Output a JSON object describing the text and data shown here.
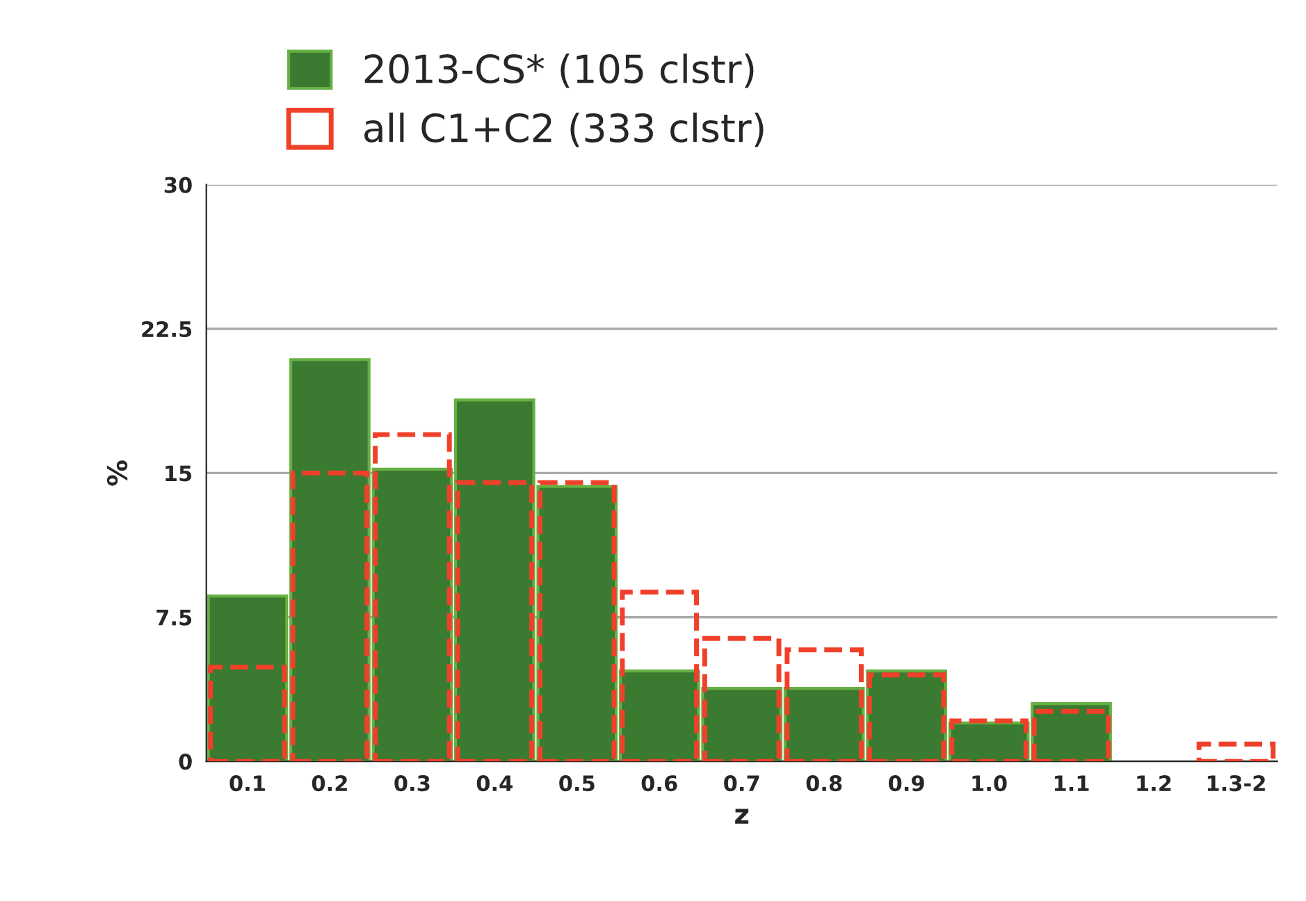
{
  "chart_data": {
    "type": "bar",
    "xlabel": "z",
    "ylabel": "%",
    "categories": [
      "0.1",
      "0.2",
      "0.3",
      "0.4",
      "0.5",
      "0.6",
      "0.7",
      "0.8",
      "0.9",
      "1.0",
      "1.1",
      "1.2",
      "1.3-2"
    ],
    "series": [
      {
        "name": "2013-CS* (105 clstr)",
        "color": "#3b7a31",
        "values": [
          8.6,
          20.9,
          15.2,
          18.8,
          14.3,
          4.7,
          3.8,
          3.8,
          4.7,
          2.0,
          3.0,
          0,
          0
        ]
      },
      {
        "name": "all C1+C2 (333 clstr)",
        "color": "#f0402a",
        "line_style": "dashed",
        "values": [
          4.9,
          15.0,
          17.0,
          14.5,
          14.5,
          8.8,
          6.4,
          5.8,
          4.5,
          2.1,
          2.6,
          0,
          0.9
        ]
      }
    ],
    "ylim": [
      0,
      30
    ],
    "yticks": [
      0,
      7.5,
      15,
      22.5,
      30
    ],
    "grid": "y",
    "legend": "top"
  }
}
